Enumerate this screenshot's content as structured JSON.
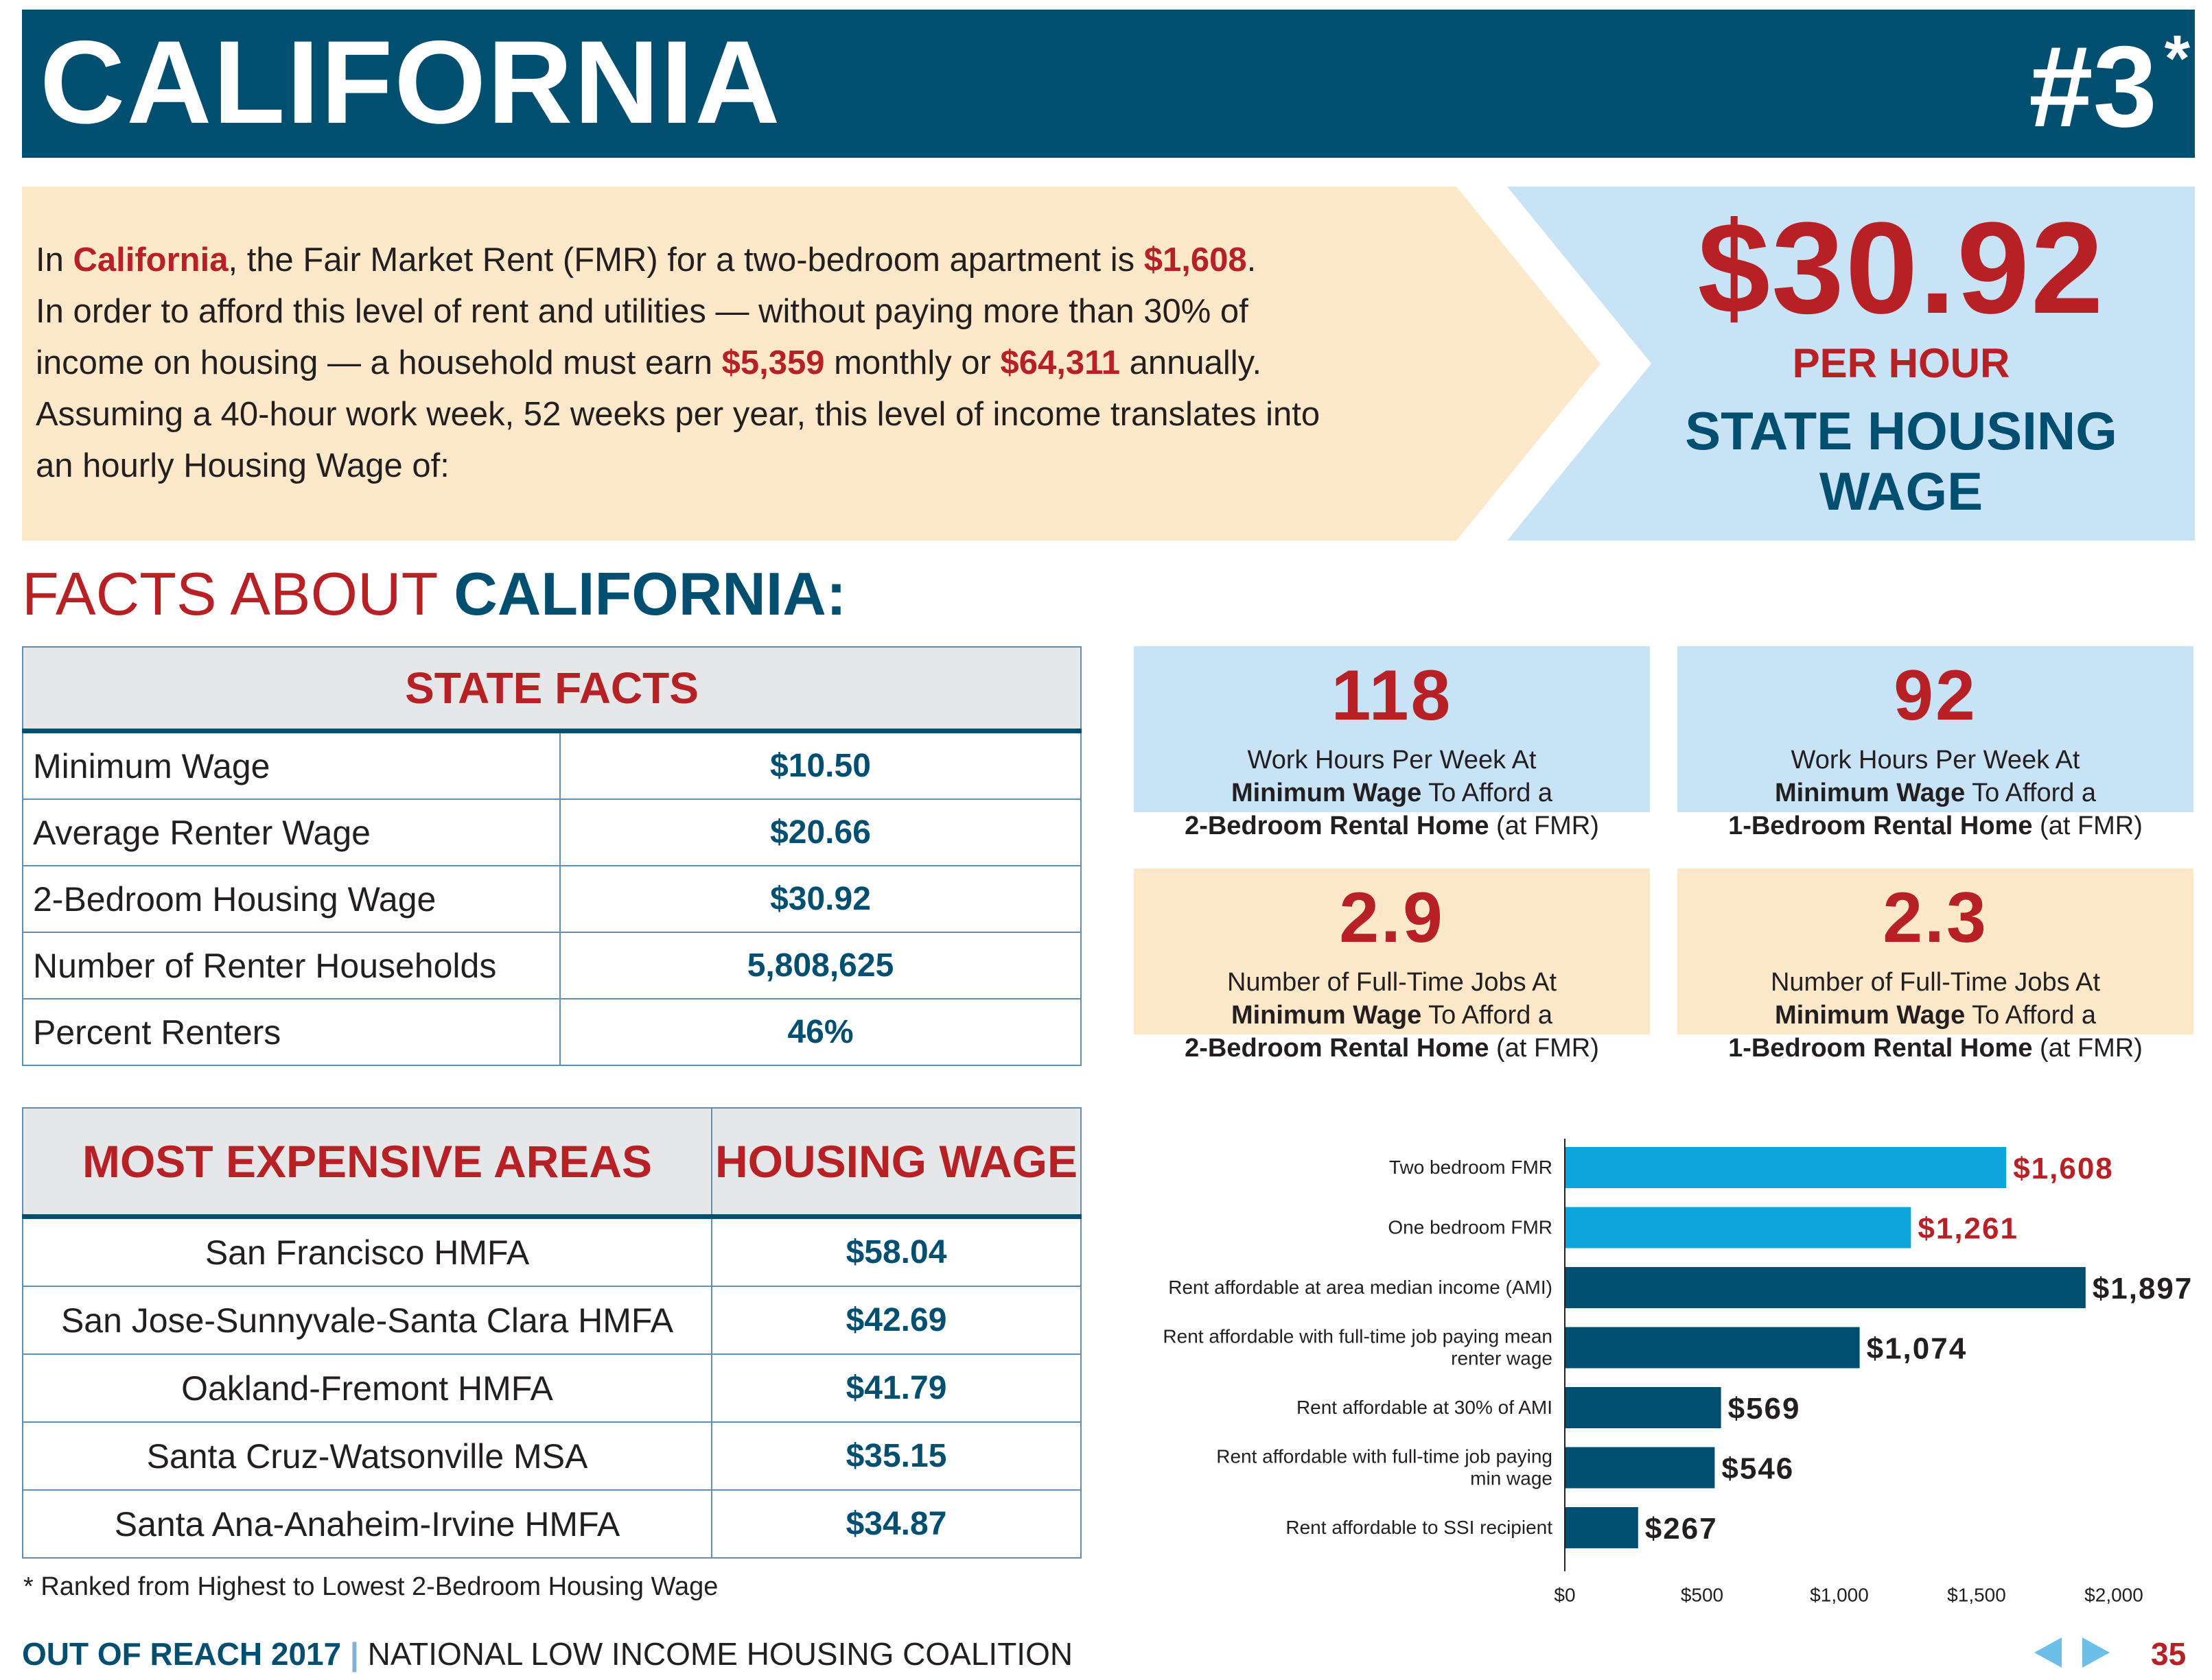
{
  "header": {
    "state": "CALIFORNIA",
    "rank": "#3",
    "rank_marker": "*"
  },
  "intro": {
    "p1": "In ",
    "state": "California",
    "p2": ", the Fair Market Rent (FMR) for a two-bedroom apartment is ",
    "fmr": "$1,608",
    "p3": ".",
    "line2": "In order to afford this level of rent and utilities — without paying more than 30% of",
    "p4": "income on housing — a household must earn ",
    "monthly": "$5,359",
    "p5": " monthly or ",
    "annual": "$64,311",
    "p6": " annually.",
    "line4": "Assuming a 40-hour work week, 52 weeks per year, this level of income translates into",
    "line5": "an hourly Housing Wage of:"
  },
  "housing_wage": {
    "amount": "$30.92",
    "per": "PER HOUR",
    "label_line1": "STATE HOUSING",
    "label_line2": "WAGE"
  },
  "facts_heading": {
    "prefix": "FACTS ABOUT ",
    "state": "CALIFORNIA:"
  },
  "state_facts": {
    "title": "STATE FACTS",
    "rows": [
      {
        "label": "Minimum Wage",
        "value": "$10.50"
      },
      {
        "label": "Average Renter Wage",
        "value": "$20.66"
      },
      {
        "label": "2-Bedroom Housing Wage",
        "value": "$30.92"
      },
      {
        "label": "Number of Renter Households",
        "value": "5,808,625"
      },
      {
        "label": "Percent Renters",
        "value": "46%"
      }
    ]
  },
  "areas": {
    "col1": "MOST EXPENSIVE AREAS",
    "col2": "HOUSING WAGE",
    "rows": [
      {
        "area": "San Francisco HMFA",
        "wage": "$58.04"
      },
      {
        "area": "San Jose-Sunnyvale-Santa Clara HMFA",
        "wage": "$42.69"
      },
      {
        "area": "Oakland-Fremont HMFA",
        "wage": "$41.79"
      },
      {
        "area": "Santa Cruz-Watsonville MSA",
        "wage": "$35.15"
      },
      {
        "area": "Santa Ana-Anaheim-Irvine HMFA",
        "wage": "$34.87"
      }
    ]
  },
  "footnote": "* Ranked from Highest to Lowest 2-Bedroom Housing Wage",
  "stats": [
    {
      "num": "118",
      "l1": "Work Hours Per Week At",
      "b1": "Minimum Wage",
      "t1": " To Afford a",
      "b2": "2-Bedroom Rental Home",
      "t2": " (at FMR)"
    },
    {
      "num": "92",
      "l1": "Work Hours Per Week At",
      "b1": "Minimum Wage",
      "t1": " To Afford a",
      "b2": "1-Bedroom Rental Home",
      "t2": " (at FMR)"
    },
    {
      "num": "2.9",
      "l1": "Number of Full-Time Jobs At",
      "b1": "Minimum Wage",
      "t1": " To Afford a",
      "b2": "2-Bedroom Rental Home",
      "t2": " (at FMR)"
    },
    {
      "num": "2.3",
      "l1": "Number of Full-Time Jobs At",
      "b1": "Minimum Wage",
      "t1": " To Afford a",
      "b2": "1-Bedroom Rental Home",
      "t2": " (at FMR)"
    }
  ],
  "chart_data": {
    "type": "bar",
    "orientation": "horizontal",
    "categories": [
      [
        "Two bedroom FMR"
      ],
      [
        "One bedroom FMR"
      ],
      [
        "Rent affordable at area median income (AMI)"
      ],
      [
        "Rent affordable with full-time job paying mean",
        "renter wage"
      ],
      [
        "Rent affordable at 30% of AMI"
      ],
      [
        "Rent affordable with full-time job paying",
        "min wage"
      ],
      [
        "Rent affordable to SSI recipient"
      ]
    ],
    "values": [
      1608,
      1261,
      1897,
      1074,
      569,
      546,
      267
    ],
    "labels": [
      "$1,608",
      "$1,261",
      "$1,897",
      "$1,074",
      "$569",
      "$546",
      "$267"
    ],
    "bar_colors": [
      "#0ea5dd",
      "#0ea5dd",
      "#004f71",
      "#004f71",
      "#004f71",
      "#004f71",
      "#004f71"
    ],
    "label_colors": [
      "#b72025",
      "#b72025",
      "#231f20",
      "#231f20",
      "#231f20",
      "#231f20",
      "#231f20"
    ],
    "xticks": [
      0,
      500,
      1000,
      1500,
      2000
    ],
    "xtick_labels": [
      "$0",
      "$500",
      "$1,000",
      "$1,500",
      "$2,000"
    ],
    "xlim": [
      0,
      2000
    ]
  },
  "footer": {
    "publication": "OUT OF REACH 2017",
    "separator": "|",
    "org": "NATIONAL LOW INCOME HOUSING COALITION",
    "page": "35"
  },
  "colors": {
    "navy": "#004f71",
    "red": "#b72025",
    "cyan": "#0ea5dd",
    "light_blue": "#c9e3f6",
    "cream": "#fde9c9"
  }
}
